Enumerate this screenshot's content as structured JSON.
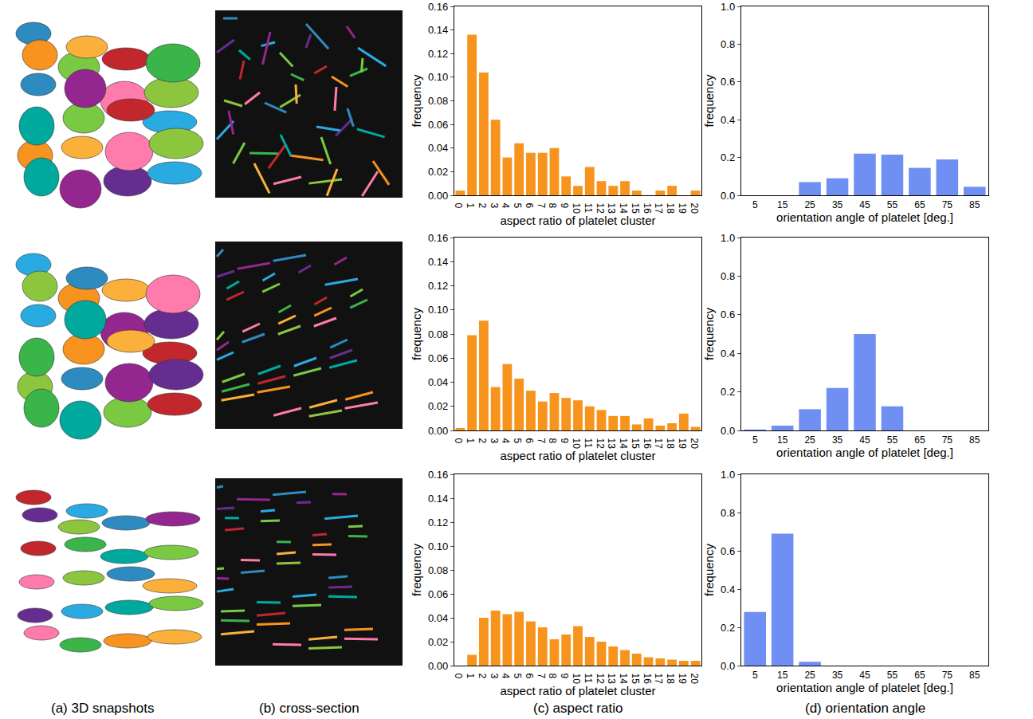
{
  "chart_data": [
    {
      "type": "bar",
      "x_label": "aspect ratio of platelet cluster",
      "y_label": "frequency",
      "color": "#f7941d",
      "categories": [
        "0",
        "1",
        "2",
        "3",
        "4",
        "5",
        "6",
        "7",
        "8",
        "9",
        "10",
        "11",
        "12",
        "13",
        "14",
        "15",
        "16",
        "17",
        "18",
        "19",
        "20"
      ],
      "values": [
        0.004,
        0.136,
        0.104,
        0.064,
        0.032,
        0.044,
        0.036,
        0.036,
        0.04,
        0.016,
        0.008,
        0.024,
        0.012,
        0.008,
        0.012,
        0.004,
        0,
        0.004,
        0.008,
        0,
        0.004
      ],
      "ylim": [
        0,
        0.16
      ],
      "yticks": [
        {
          "value": 0,
          "label": "0.00"
        },
        0.02,
        0.04,
        0.06,
        0.08,
        {
          "value": 0.1,
          "label": "0.10"
        },
        0.12,
        0.14,
        0.16
      ]
    },
    {
      "type": "bar",
      "x_label": "orientation angle of platelet [deg.]",
      "y_label": "frequency",
      "color": "#6f8ff2",
      "categories": [
        "5",
        "15",
        "25",
        "35",
        "45",
        "55",
        "65",
        "75",
        "85"
      ],
      "values": [
        0,
        0,
        0.07,
        0.09,
        0.22,
        0.215,
        0.145,
        0.19,
        0.045
      ],
      "ylim": [
        0,
        1
      ],
      "yticks": [
        {
          "value": 0,
          "label": "0.0"
        },
        0.2,
        0.4,
        0.6,
        0.8,
        {
          "value": 1,
          "label": "1.0"
        }
      ]
    },
    {
      "type": "bar",
      "x_label": "aspect ratio of platelet cluster",
      "y_label": "frequency",
      "color": "#f7941d",
      "categories": [
        "0",
        "1",
        "2",
        "3",
        "4",
        "5",
        "6",
        "7",
        "8",
        "9",
        "10",
        "11",
        "12",
        "13",
        "14",
        "15",
        "16",
        "17",
        "18",
        "19",
        "20"
      ],
      "values": [
        0.002,
        0.079,
        0.091,
        0.036,
        0.055,
        0.043,
        0.033,
        0.024,
        0.031,
        0.027,
        0.025,
        0.02,
        0.017,
        0.012,
        0.012,
        0.005,
        0.01,
        0.004,
        0.006,
        0.014,
        0.003
      ],
      "ylim": [
        0,
        0.16
      ],
      "yticks": [
        {
          "value": 0,
          "label": "0.00"
        },
        0.02,
        0.04,
        0.06,
        0.08,
        {
          "value": 0.1,
          "label": "0.10"
        },
        0.12,
        0.14,
        0.16
      ]
    },
    {
      "type": "bar",
      "x_label": "orientation angle of platelet [deg.]",
      "y_label": "frequency",
      "color": "#6f8ff2",
      "categories": [
        "5",
        "15",
        "25",
        "35",
        "45",
        "55",
        "65",
        "75",
        "85"
      ],
      "values": [
        0.005,
        0.025,
        0.11,
        0.22,
        0.5,
        0.125,
        0,
        0,
        0
      ],
      "ylim": [
        0,
        1
      ],
      "yticks": [
        {
          "value": 0,
          "label": "0.0"
        },
        0.2,
        0.4,
        0.6,
        0.8,
        {
          "value": 1,
          "label": "1.0"
        }
      ]
    },
    {
      "type": "bar",
      "x_label": "aspect ratio of platelet cluster",
      "y_label": "frequency",
      "color": "#f7941d",
      "categories": [
        "0",
        "1",
        "2",
        "3",
        "4",
        "5",
        "6",
        "7",
        "8",
        "9",
        "10",
        "11",
        "12",
        "13",
        "14",
        "15",
        "16",
        "17",
        "18",
        "19",
        "20"
      ],
      "values": [
        0,
        0.009,
        0.04,
        0.046,
        0.043,
        0.045,
        0.037,
        0.032,
        0.022,
        0.026,
        0.033,
        0.024,
        0.02,
        0.016,
        0.013,
        0.01,
        0.007,
        0.006,
        0.005,
        0.004,
        0.004
      ],
      "ylim": [
        0,
        0.16
      ],
      "yticks": [
        {
          "value": 0,
          "label": "0.00"
        },
        0.02,
        0.04,
        0.06,
        0.08,
        {
          "value": 0.1,
          "label": "0.10"
        },
        0.12,
        0.14,
        0.16
      ]
    },
    {
      "type": "bar",
      "x_label": "orientation angle of platelet [deg.]",
      "y_label": "frequency",
      "color": "#6f8ff2",
      "categories": [
        "5",
        "15",
        "25",
        "35",
        "45",
        "55",
        "65",
        "75",
        "85"
      ],
      "values": [
        0.28,
        0.69,
        0.02,
        0,
        0,
        0,
        0,
        0,
        0
      ],
      "ylim": [
        0,
        1
      ],
      "yticks": [
        {
          "value": 0,
          "label": "0.0"
        },
        0.2,
        0.4,
        0.6,
        0.8,
        {
          "value": 1,
          "label": "1.0"
        }
      ]
    }
  ],
  "captions": [
    "(a) 3D snapshots",
    "(b) cross-section",
    "(c) aspect ratio",
    "(d) orientation angle"
  ]
}
